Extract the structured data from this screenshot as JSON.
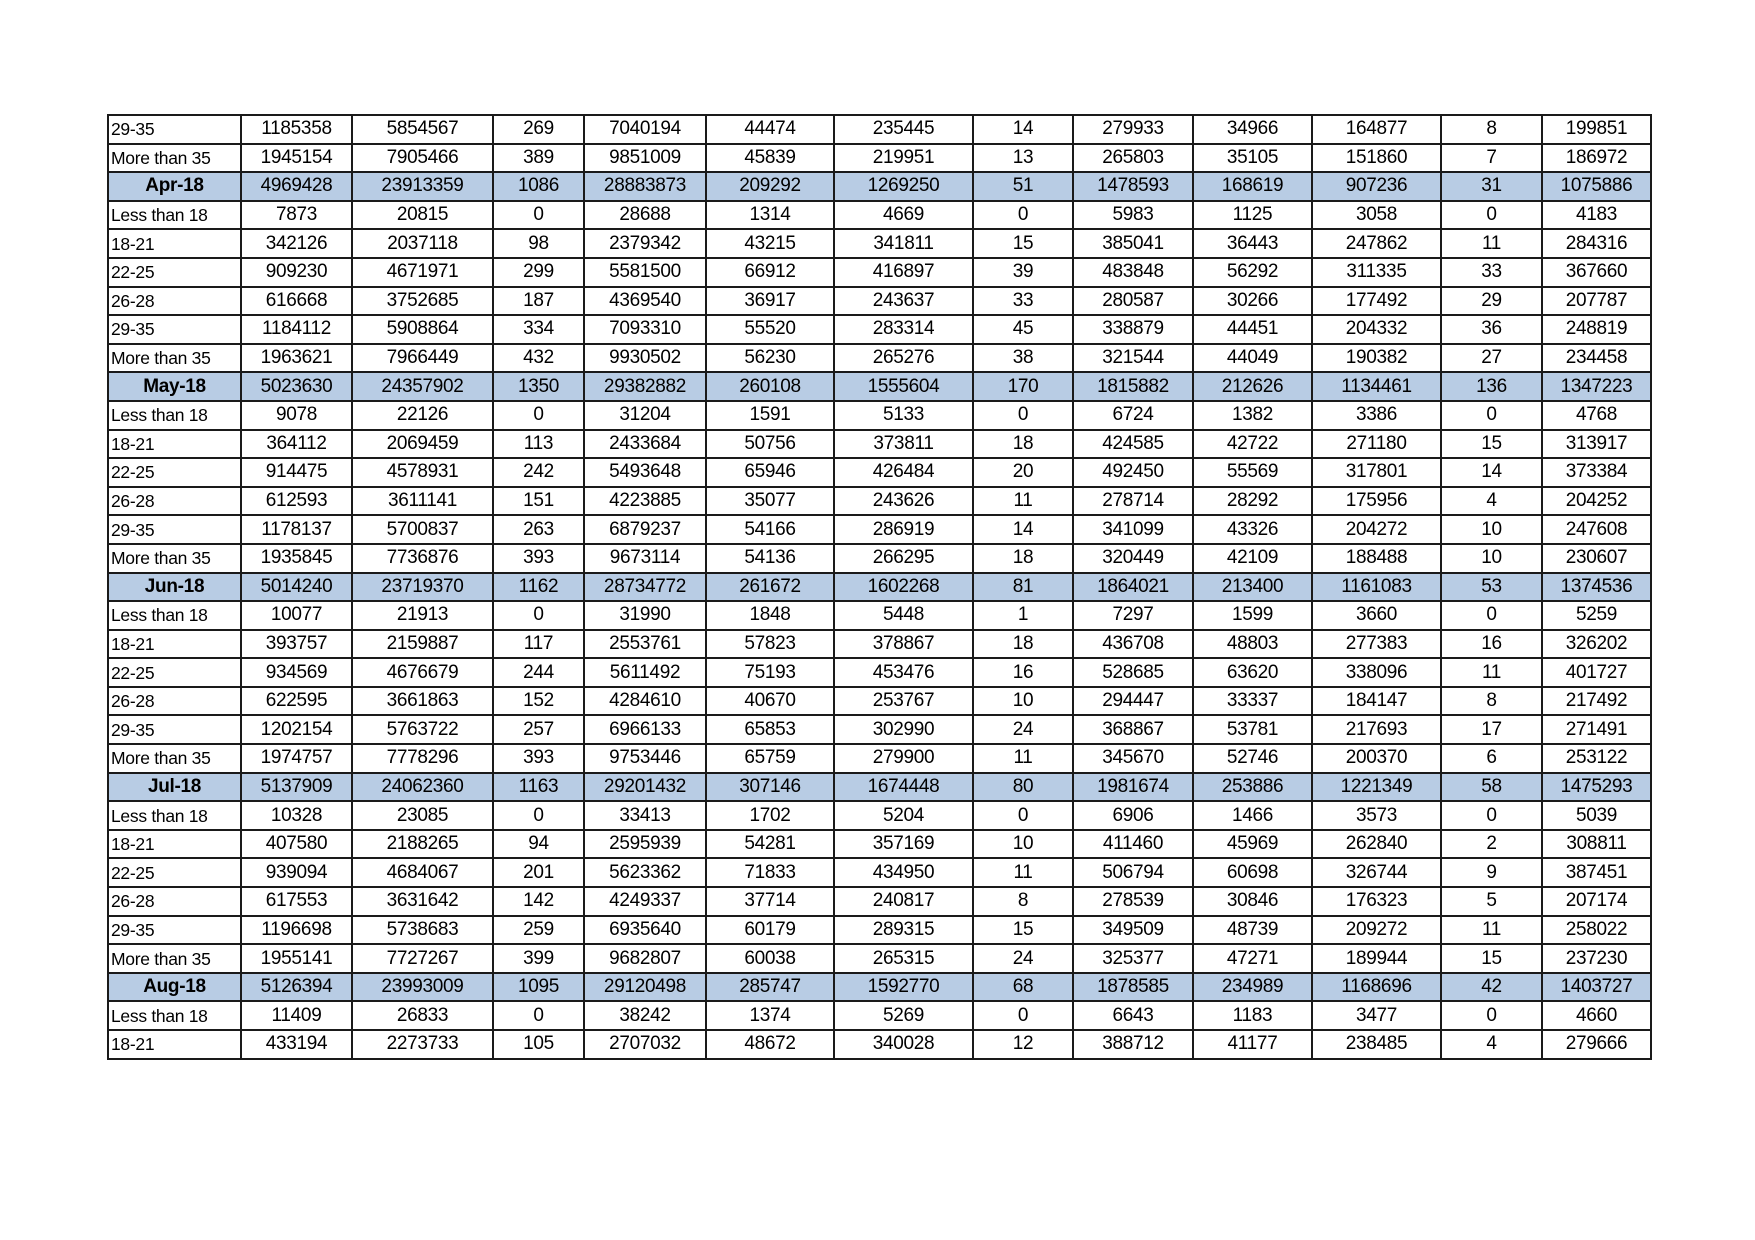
{
  "colors": {
    "month_row_fill": "#b8cce4",
    "grid": "#1a1a1a"
  },
  "rows": [
    {
      "type": "group",
      "label": "29-35",
      "values": [
        "1185358",
        "5854567",
        "269",
        "7040194",
        "44474",
        "235445",
        "14",
        "279933",
        "34966",
        "164877",
        "8",
        "199851"
      ]
    },
    {
      "type": "group",
      "label": "More than 35",
      "values": [
        "1945154",
        "7905466",
        "389",
        "9851009",
        "45839",
        "219951",
        "13",
        "265803",
        "35105",
        "151860",
        "7",
        "186972"
      ]
    },
    {
      "type": "month",
      "label": "Apr-18",
      "values": [
        "4969428",
        "23913359",
        "1086",
        "28883873",
        "209292",
        "1269250",
        "51",
        "1478593",
        "168619",
        "907236",
        "31",
        "1075886"
      ]
    },
    {
      "type": "group",
      "label": "Less than 18",
      "values": [
        "7873",
        "20815",
        "0",
        "28688",
        "1314",
        "4669",
        "0",
        "5983",
        "1125",
        "3058",
        "0",
        "4183"
      ]
    },
    {
      "type": "group",
      "label": "18-21",
      "values": [
        "342126",
        "2037118",
        "98",
        "2379342",
        "43215",
        "341811",
        "15",
        "385041",
        "36443",
        "247862",
        "11",
        "284316"
      ]
    },
    {
      "type": "group",
      "label": "22-25",
      "values": [
        "909230",
        "4671971",
        "299",
        "5581500",
        "66912",
        "416897",
        "39",
        "483848",
        "56292",
        "311335",
        "33",
        "367660"
      ]
    },
    {
      "type": "group",
      "label": "26-28",
      "values": [
        "616668",
        "3752685",
        "187",
        "4369540",
        "36917",
        "243637",
        "33",
        "280587",
        "30266",
        "177492",
        "29",
        "207787"
      ]
    },
    {
      "type": "group",
      "label": "29-35",
      "values": [
        "1184112",
        "5908864",
        "334",
        "7093310",
        "55520",
        "283314",
        "45",
        "338879",
        "44451",
        "204332",
        "36",
        "248819"
      ]
    },
    {
      "type": "group",
      "label": "More than 35",
      "values": [
        "1963621",
        "7966449",
        "432",
        "9930502",
        "56230",
        "265276",
        "38",
        "321544",
        "44049",
        "190382",
        "27",
        "234458"
      ]
    },
    {
      "type": "month",
      "label": "May-18",
      "values": [
        "5023630",
        "24357902",
        "1350",
        "29382882",
        "260108",
        "1555604",
        "170",
        "1815882",
        "212626",
        "1134461",
        "136",
        "1347223"
      ]
    },
    {
      "type": "group",
      "label": "Less than 18",
      "values": [
        "9078",
        "22126",
        "0",
        "31204",
        "1591",
        "5133",
        "0",
        "6724",
        "1382",
        "3386",
        "0",
        "4768"
      ]
    },
    {
      "type": "group",
      "label": "18-21",
      "values": [
        "364112",
        "2069459",
        "113",
        "2433684",
        "50756",
        "373811",
        "18",
        "424585",
        "42722",
        "271180",
        "15",
        "313917"
      ]
    },
    {
      "type": "group",
      "label": "22-25",
      "values": [
        "914475",
        "4578931",
        "242",
        "5493648",
        "65946",
        "426484",
        "20",
        "492450",
        "55569",
        "317801",
        "14",
        "373384"
      ]
    },
    {
      "type": "group",
      "label": "26-28",
      "values": [
        "612593",
        "3611141",
        "151",
        "4223885",
        "35077",
        "243626",
        "11",
        "278714",
        "28292",
        "175956",
        "4",
        "204252"
      ]
    },
    {
      "type": "group",
      "label": "29-35",
      "values": [
        "1178137",
        "5700837",
        "263",
        "6879237",
        "54166",
        "286919",
        "14",
        "341099",
        "43326",
        "204272",
        "10",
        "247608"
      ]
    },
    {
      "type": "group",
      "label": "More than 35",
      "values": [
        "1935845",
        "7736876",
        "393",
        "9673114",
        "54136",
        "266295",
        "18",
        "320449",
        "42109",
        "188488",
        "10",
        "230607"
      ]
    },
    {
      "type": "month",
      "label": "Jun-18",
      "values": [
        "5014240",
        "23719370",
        "1162",
        "28734772",
        "261672",
        "1602268",
        "81",
        "1864021",
        "213400",
        "1161083",
        "53",
        "1374536"
      ]
    },
    {
      "type": "group",
      "label": "Less than 18",
      "values": [
        "10077",
        "21913",
        "0",
        "31990",
        "1848",
        "5448",
        "1",
        "7297",
        "1599",
        "3660",
        "0",
        "5259"
      ]
    },
    {
      "type": "group",
      "label": "18-21",
      "values": [
        "393757",
        "2159887",
        "117",
        "2553761",
        "57823",
        "378867",
        "18",
        "436708",
        "48803",
        "277383",
        "16",
        "326202"
      ]
    },
    {
      "type": "group",
      "label": "22-25",
      "values": [
        "934569",
        "4676679",
        "244",
        "5611492",
        "75193",
        "453476",
        "16",
        "528685",
        "63620",
        "338096",
        "11",
        "401727"
      ]
    },
    {
      "type": "group",
      "label": "26-28",
      "values": [
        "622595",
        "3661863",
        "152",
        "4284610",
        "40670",
        "253767",
        "10",
        "294447",
        "33337",
        "184147",
        "8",
        "217492"
      ]
    },
    {
      "type": "group",
      "label": "29-35",
      "values": [
        "1202154",
        "5763722",
        "257",
        "6966133",
        "65853",
        "302990",
        "24",
        "368867",
        "53781",
        "217693",
        "17",
        "271491"
      ]
    },
    {
      "type": "group",
      "label": "More than 35",
      "values": [
        "1974757",
        "7778296",
        "393",
        "9753446",
        "65759",
        "279900",
        "11",
        "345670",
        "52746",
        "200370",
        "6",
        "253122"
      ]
    },
    {
      "type": "month",
      "label": "Jul-18",
      "values": [
        "5137909",
        "24062360",
        "1163",
        "29201432",
        "307146",
        "1674448",
        "80",
        "1981674",
        "253886",
        "1221349",
        "58",
        "1475293"
      ]
    },
    {
      "type": "group",
      "label": "Less than 18",
      "values": [
        "10328",
        "23085",
        "0",
        "33413",
        "1702",
        "5204",
        "0",
        "6906",
        "1466",
        "3573",
        "0",
        "5039"
      ]
    },
    {
      "type": "group",
      "label": "18-21",
      "values": [
        "407580",
        "2188265",
        "94",
        "2595939",
        "54281",
        "357169",
        "10",
        "411460",
        "45969",
        "262840",
        "2",
        "308811"
      ]
    },
    {
      "type": "group",
      "label": "22-25",
      "values": [
        "939094",
        "4684067",
        "201",
        "5623362",
        "71833",
        "434950",
        "11",
        "506794",
        "60698",
        "326744",
        "9",
        "387451"
      ]
    },
    {
      "type": "group",
      "label": "26-28",
      "values": [
        "617553",
        "3631642",
        "142",
        "4249337",
        "37714",
        "240817",
        "8",
        "278539",
        "30846",
        "176323",
        "5",
        "207174"
      ]
    },
    {
      "type": "group",
      "label": "29-35",
      "values": [
        "1196698",
        "5738683",
        "259",
        "6935640",
        "60179",
        "289315",
        "15",
        "349509",
        "48739",
        "209272",
        "11",
        "258022"
      ]
    },
    {
      "type": "group",
      "label": "More than 35",
      "values": [
        "1955141",
        "7727267",
        "399",
        "9682807",
        "60038",
        "265315",
        "24",
        "325377",
        "47271",
        "189944",
        "15",
        "237230"
      ]
    },
    {
      "type": "month",
      "label": "Aug-18",
      "values": [
        "5126394",
        "23993009",
        "1095",
        "29120498",
        "285747",
        "1592770",
        "68",
        "1878585",
        "234989",
        "1168696",
        "42",
        "1403727"
      ]
    },
    {
      "type": "group",
      "label": "Less than 18",
      "values": [
        "11409",
        "26833",
        "0",
        "38242",
        "1374",
        "5269",
        "0",
        "6643",
        "1183",
        "3477",
        "0",
        "4660"
      ]
    },
    {
      "type": "group",
      "label": "18-21",
      "values": [
        "433194",
        "2273733",
        "105",
        "2707032",
        "48672",
        "340028",
        "12",
        "388712",
        "41177",
        "238485",
        "4",
        "279666"
      ]
    }
  ]
}
